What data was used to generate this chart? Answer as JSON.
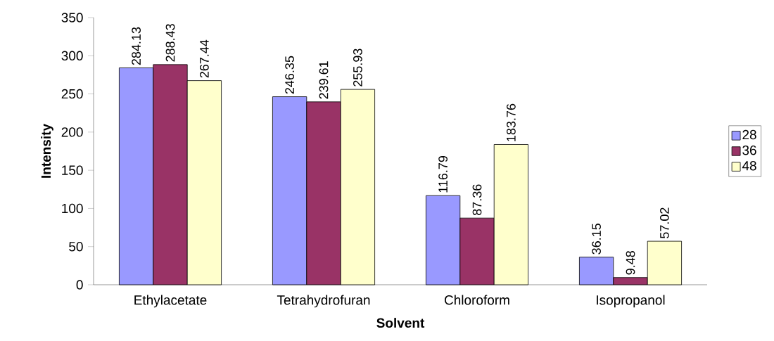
{
  "chart_data": {
    "type": "bar",
    "xlabel": "Solvent",
    "ylabel": "Intensity",
    "categories": [
      "Ethylacetate",
      "Tetrahydrofuran",
      "Chloroform",
      "Isopropanol"
    ],
    "series": [
      {
        "name": "28",
        "color": "#9999ff",
        "values": [
          284.13,
          246.35,
          116.79,
          36.15
        ]
      },
      {
        "name": "36",
        "color": "#993366",
        "values": [
          288.43,
          239.61,
          87.36,
          9.48
        ]
      },
      {
        "name": "48",
        "color": "#ffffcc",
        "values": [
          267.44,
          255.93,
          183.76,
          57.02
        ]
      }
    ],
    "ylim": [
      0,
      350
    ],
    "yticks": [
      0,
      50,
      100,
      150,
      200,
      250,
      300,
      350
    ],
    "data_labels": true,
    "legend": "right",
    "grid": false
  }
}
